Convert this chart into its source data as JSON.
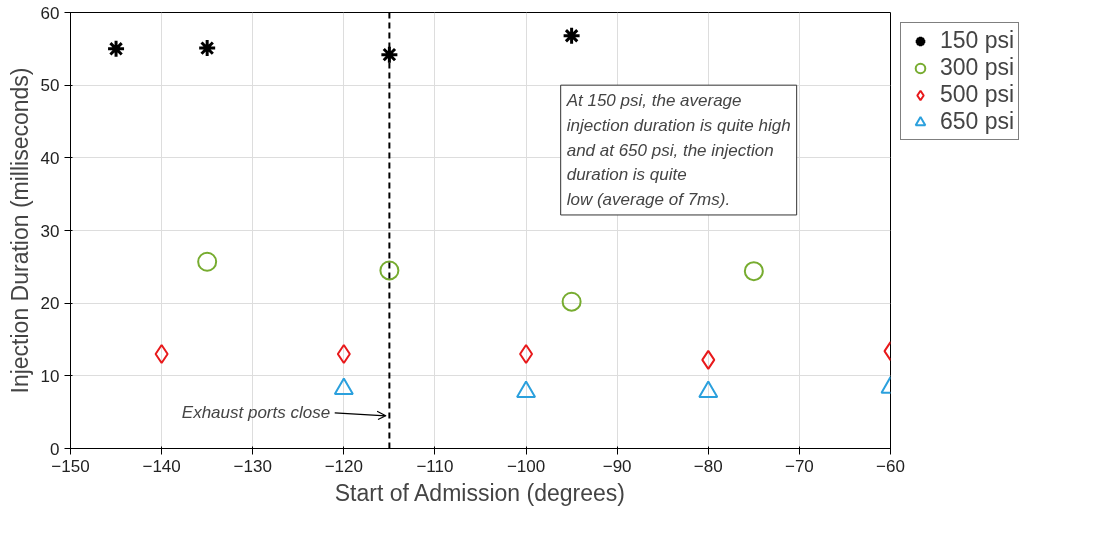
{
  "chart_data": {
    "type": "scatter",
    "xlabel": "Start of Admission (degrees)",
    "ylabel": "Injection Duration (milliseconds)",
    "xlim": [
      -150,
      -60
    ],
    "ylim": [
      0,
      60
    ],
    "xticks": [
      -150,
      -140,
      -130,
      -120,
      -110,
      -100,
      -90,
      -80,
      -70,
      -60
    ],
    "yticks": [
      0,
      10,
      20,
      30,
      40,
      50,
      60
    ],
    "grid": true,
    "legend": "top right",
    "series": [
      {
        "name": "150 psi",
        "color": "#000000",
        "marker": "cross",
        "x": [
          -145,
          -135,
          -115,
          -95
        ],
        "values": [
          55.0,
          55.1,
          54.2,
          56.8
        ]
      },
      {
        "name": "300 psi",
        "color": "#77ac30",
        "marker": "circle",
        "x": [
          -135,
          -115,
          -95,
          -75
        ],
        "values": [
          25.7,
          24.5,
          20.2,
          24.4
        ]
      },
      {
        "name": "500 psi",
        "color": "#e8191b",
        "marker": "diamond",
        "x": [
          -140,
          -120,
          -100,
          -80,
          -60
        ],
        "values": [
          13.0,
          13.0,
          13.0,
          12.2,
          13.4
        ]
      },
      {
        "name": "650 psi",
        "color": "#2ba0dd",
        "marker": "triangle",
        "x": [
          -120,
          -100,
          -80,
          -60
        ],
        "values": [
          8.2,
          7.8,
          7.8,
          8.4
        ]
      }
    ],
    "ref_lines": [
      {
        "axis": "x",
        "value": -115,
        "color": "#000000",
        "line_style": "dashed"
      }
    ],
    "annotations": [
      "Exhaust ports close",
      "At 150 psi, the average\ninjection duration is quite high\nand at 650 psi, the injection\nduration is quite\nlow (average of 7ms)."
    ]
  }
}
